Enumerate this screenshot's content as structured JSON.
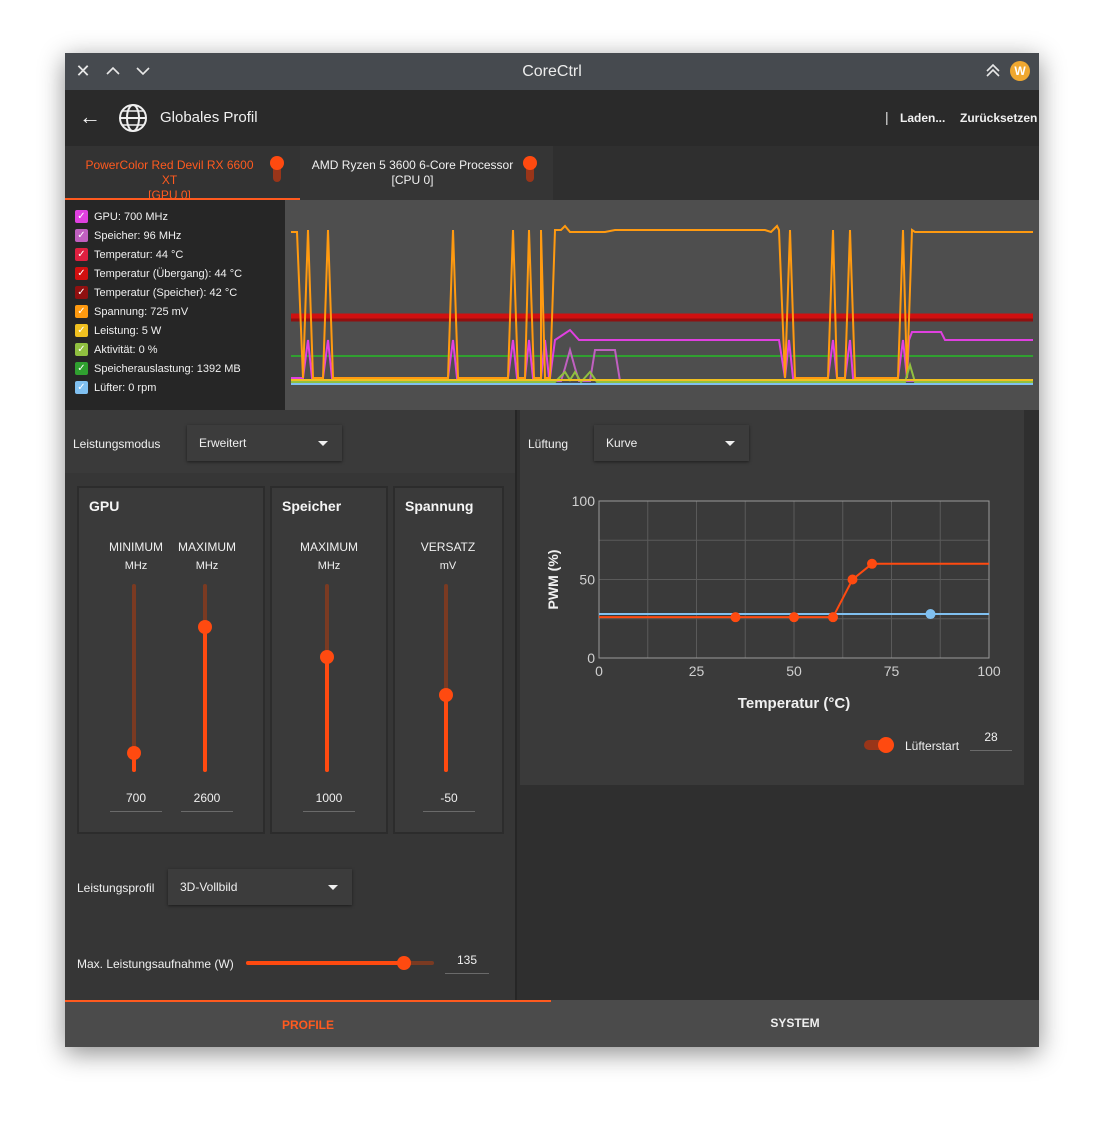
{
  "window": {
    "title": "CoreCtrl"
  },
  "toolbar": {
    "profile_name": "Globales Profil",
    "load_label": "Laden...",
    "reset_label": "Zurücksetzen",
    "separator": "|"
  },
  "devices": [
    {
      "name": "PowerColor Red Devil RX 6600 XT",
      "sub": "[GPU 0]",
      "active": true
    },
    {
      "name": "AMD Ryzen 5 3600 6-Core Processor",
      "sub": "[CPU 0]",
      "active": false
    }
  ],
  "legend": [
    {
      "label": "GPU: 700 MHz",
      "color": "#e040e0"
    },
    {
      "label": "Speicher: 96 MHz",
      "color": "#c060c0"
    },
    {
      "label": "Temperatur: 44 °C",
      "color": "#e02040"
    },
    {
      "label": "Temperatur (Übergang): 44 °C",
      "color": "#d01010"
    },
    {
      "label": "Temperatur (Speicher): 42 °C",
      "color": "#901010"
    },
    {
      "label": "Spannung: 725 mV",
      "color": "#ff9a10"
    },
    {
      "label": "Leistung: 5 W",
      "color": "#f0c020"
    },
    {
      "label": "Aktivität: 0 %",
      "color": "#90c040"
    },
    {
      "label": "Speicherauslastung: 1392 MB",
      "color": "#30a030"
    },
    {
      "label": "Lüfter: 0 rpm",
      "color": "#80c0f0"
    }
  ],
  "perf": {
    "mode_label": "Leistungsmodus",
    "mode_value": "Erweitert",
    "gpu_title": "GPU",
    "mem_title": "Speicher",
    "volt_title": "Spannung",
    "gpu_min_head": "MINIMUM",
    "gpu_max_head": "MAXIMUM",
    "mem_max_head": "MAXIMUM",
    "volt_head": "VERSATZ",
    "unit_mhz": "MHz",
    "unit_mv": "mV",
    "gpu_min": {
      "value": "700",
      "fraction": 0.1
    },
    "gpu_max": {
      "value": "2600",
      "fraction": 0.77
    },
    "mem_max": {
      "value": "1000",
      "fraction": 0.61
    },
    "volt_offset": {
      "value": "-50",
      "fraction": 0.41
    },
    "profile_label": "Leistungsprofil",
    "profile_value": "3D-Vollbild",
    "power_label": "Max. Leistungsaufnahme (W)",
    "power_value": "135",
    "power_fraction": 0.84
  },
  "fan": {
    "label": "Lüftung",
    "mode_value": "Kurve",
    "start_label": "Lüfterstart",
    "start_value": "28"
  },
  "chart_data": {
    "type": "line",
    "xlabel": "Temperatur (°C)",
    "ylabel": "PWM (%)",
    "xlim": [
      0,
      100
    ],
    "ylim": [
      0,
      100
    ],
    "xticks": [
      "0",
      "25",
      "50",
      "75",
      "100"
    ],
    "yticks": [
      "0",
      "50",
      "100"
    ],
    "grid": true,
    "series": [
      {
        "points": [
          [
            0,
            26
          ],
          [
            35,
            26
          ],
          [
            50,
            26
          ],
          [
            60,
            26
          ],
          [
            65,
            50
          ],
          [
            70,
            60
          ],
          [
            100,
            60
          ]
        ],
        "markers": [
          [
            35,
            26
          ],
          [
            50,
            26
          ],
          [
            60,
            26
          ],
          [
            65,
            50
          ],
          [
            70,
            60
          ]
        ],
        "color": "#ff4a10"
      },
      {
        "points": [
          [
            0,
            28
          ],
          [
            100,
            28
          ]
        ],
        "markers": [
          [
            85,
            28
          ]
        ],
        "color": "#80c0f0"
      }
    ]
  },
  "bottom": {
    "tab_profile": "PROFILE",
    "tab_system": "SYSTEM"
  }
}
